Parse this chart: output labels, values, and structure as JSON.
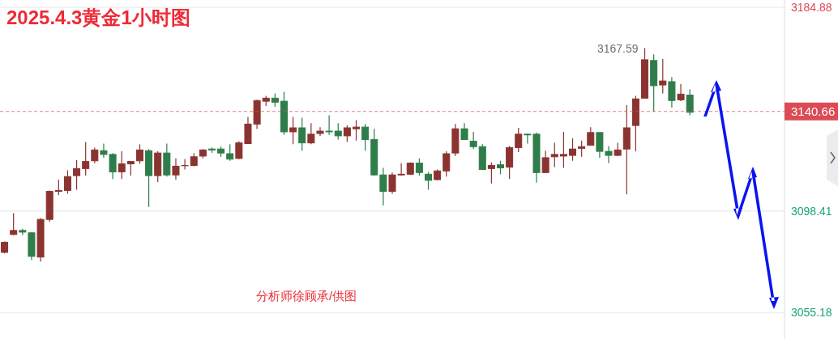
{
  "chart_data": {
    "type": "candlestick",
    "title": "2025.4.3黄金1小时图",
    "categories": [
      null,
      null,
      null,
      null,
      null,
      null,
      null,
      null,
      null,
      null,
      null,
      null,
      null,
      null,
      null,
      null,
      null,
      null,
      null,
      null,
      null,
      null,
      null,
      null,
      null,
      null,
      null,
      null,
      null,
      null,
      null,
      null,
      null,
      null,
      null,
      null,
      null,
      null,
      null,
      null,
      null,
      null,
      null,
      null,
      null,
      null,
      null,
      null,
      null,
      null,
      null,
      null,
      null,
      null,
      null,
      null,
      null,
      null,
      null,
      null,
      null,
      null,
      null,
      null,
      null,
      null,
      null,
      null,
      null,
      null,
      null,
      null,
      null,
      null,
      null,
      null,
      null,
      null,
      null,
      null,
      null,
      null,
      null,
      null,
      null,
      null,
      null
    ],
    "ohlc": [
      [
        3080.8,
        3085.4,
        3080.4,
        3085.1
      ],
      [
        3088.4,
        3097.4,
        3088.1,
        3090.1
      ],
      [
        3090.1,
        3090.8,
        3088.1,
        3089.4
      ],
      [
        3089.1,
        3089.4,
        3077.5,
        3079.1
      ],
      [
        3078.8,
        3095.4,
        3076.8,
        3094.8
      ],
      [
        3094.8,
        3107.1,
        3093.8,
        3106.7
      ],
      [
        3106.7,
        3111.7,
        3105.1,
        3107.1
      ],
      [
        3107.1,
        3115.7,
        3105.7,
        3113.0
      ],
      [
        3113.4,
        3120.0,
        3107.4,
        3116.4
      ],
      [
        3116.4,
        3127.7,
        3113.4,
        3119.4
      ],
      [
        3119.7,
        3125.3,
        3118.7,
        3124.3
      ],
      [
        3124.0,
        3127.0,
        3121.0,
        3122.4
      ],
      [
        3122.4,
        3123.0,
        3112.0,
        3115.0
      ],
      [
        3115.0,
        3123.7,
        3112.0,
        3118.4
      ],
      [
        3118.4,
        3119.4,
        3113.4,
        3119.4
      ],
      [
        3119.7,
        3126.7,
        3118.4,
        3124.3
      ],
      [
        3124.0,
        3124.7,
        3100.1,
        3113.4
      ],
      [
        3113.4,
        3123.7,
        3110.7,
        3123.0
      ],
      [
        3123.0,
        3127.0,
        3113.0,
        3113.7
      ],
      [
        3113.7,
        3120.7,
        3111.7,
        3117.4
      ],
      [
        3117.6,
        3120.4,
        3116.0,
        3117.7
      ],
      [
        3117.7,
        3123.0,
        3117.4,
        3121.4
      ],
      [
        3121.7,
        3124.7,
        3120.7,
        3124.3
      ],
      [
        3124.7,
        3125.3,
        3123.0,
        3124.3
      ],
      [
        3124.7,
        3125.7,
        3121.4,
        3123.0
      ],
      [
        3122.7,
        3126.7,
        3119.7,
        3120.4
      ],
      [
        3120.7,
        3128.0,
        3120.4,
        3127.3
      ],
      [
        3127.0,
        3138.3,
        3126.7,
        3135.3
      ],
      [
        3135.3,
        3145.6,
        3133.3,
        3145.3
      ],
      [
        3145.0,
        3147.3,
        3143.0,
        3146.3
      ],
      [
        3146.3,
        3148.3,
        3142.6,
        3144.6
      ],
      [
        3145.0,
        3149.0,
        3130.7,
        3132.0
      ],
      [
        3132.0,
        3138.3,
        3126.7,
        3133.7
      ],
      [
        3133.7,
        3138.0,
        3124.0,
        3127.3
      ],
      [
        3127.3,
        3135.7,
        3126.7,
        3131.0
      ],
      [
        3131.3,
        3134.0,
        3130.3,
        3132.3
      ],
      [
        3132.3,
        3139.0,
        3130.7,
        3132.0
      ],
      [
        3132.3,
        3135.7,
        3128.7,
        3130.3
      ],
      [
        3130.3,
        3134.7,
        3127.7,
        3133.7
      ],
      [
        3133.3,
        3137.0,
        3128.3,
        3134.0
      ],
      [
        3134.0,
        3135.3,
        3124.0,
        3128.7
      ],
      [
        3128.7,
        3133.3,
        3113.4,
        3113.7
      ],
      [
        3113.7,
        3116.7,
        3100.7,
        3106.7
      ],
      [
        3106.7,
        3114.7,
        3105.7,
        3113.7
      ],
      [
        3113.7,
        3118.7,
        3113.4,
        3114.0
      ],
      [
        3114.0,
        3119.0,
        3113.7,
        3118.7
      ],
      [
        3118.7,
        3120.7,
        3113.4,
        3114.7
      ],
      [
        3114.0,
        3115.0,
        3107.4,
        3111.4
      ],
      [
        3111.7,
        3116.0,
        3111.4,
        3115.4
      ],
      [
        3115.4,
        3123.7,
        3113.0,
        3122.7
      ],
      [
        3123.0,
        3135.3,
        3121.7,
        3133.3
      ],
      [
        3133.3,
        3135.7,
        3128.7,
        3128.7
      ],
      [
        3128.0,
        3132.0,
        3124.7,
        3125.7
      ],
      [
        3125.7,
        3126.7,
        3116.0,
        3116.0
      ],
      [
        3116.4,
        3119.0,
        3110.1,
        3117.7
      ],
      [
        3118.0,
        3119.7,
        3114.0,
        3116.7
      ],
      [
        3117.0,
        3126.0,
        3112.0,
        3125.3
      ],
      [
        3125.3,
        3133.7,
        3123.4,
        3131.0
      ],
      [
        3131.0,
        3131.3,
        3127.0,
        3130.7
      ],
      [
        3131.0,
        3131.7,
        3110.4,
        3114.7
      ],
      [
        3114.7,
        3124.0,
        3114.7,
        3121.0
      ],
      [
        3121.4,
        3127.3,
        3117.0,
        3122.4
      ],
      [
        3121.7,
        3132.0,
        3116.7,
        3122.4
      ],
      [
        3122.0,
        3129.3,
        3119.7,
        3124.7
      ],
      [
        3125.0,
        3128.3,
        3121.4,
        3125.7
      ],
      [
        3126.3,
        3134.0,
        3126.3,
        3131.7
      ],
      [
        3131.7,
        3131.7,
        3121.0,
        3123.7
      ],
      [
        3123.7,
        3126.0,
        3118.7,
        3122.0
      ],
      [
        3122.0,
        3127.3,
        3121.7,
        3124.3
      ],
      [
        3124.7,
        3143.3,
        3105.4,
        3133.7
      ],
      [
        3134.7,
        3147.3,
        3123.7,
        3146.0
      ],
      [
        3146.3,
        3167.59,
        3146.3,
        3162.6
      ],
      [
        3162.3,
        3164.9,
        3140.6,
        3151.6
      ],
      [
        3151.9,
        3162.9,
        3148.3,
        3153.6
      ],
      [
        3153.3,
        3155.3,
        3142.3,
        3145.3
      ],
      [
        3145.6,
        3152.3,
        3145.0,
        3148.0
      ],
      [
        3147.6,
        3150.0,
        3139.0,
        3140.3
      ],
      null,
      null,
      null,
      null,
      null,
      null,
      null,
      null,
      null,
      null
    ],
    "colors": [
      "#8b3330",
      "#8b3330",
      "#2e7d4a",
      "#2e7d4a",
      "#8b3330",
      "#8b3330",
      "#8b3330",
      "#8b3330",
      "#8b3330",
      "#8b3330",
      "#8b3330",
      "#2e7d4a",
      "#2e7d4a",
      "#8b3330",
      "#8b3330",
      "#8b3330",
      "#2e7d4a",
      "#8b3330",
      "#2e7d4a",
      "#8b3330",
      "#8b3330",
      "#8b3330",
      "#8b3330",
      "#2e7d4a",
      "#2e7d4a",
      "#2e7d4a",
      "#8b3330",
      "#8b3330",
      "#8b3330",
      "#8b3330",
      "#2e7d4a",
      "#2e7d4a",
      "#8b3330",
      "#2e7d4a",
      "#8b3330",
      "#8b3330",
      "#2e7d4a",
      "#2e7d4a",
      "#8b3330",
      "#8b3330",
      "#2e7d4a",
      "#2e7d4a",
      "#2e7d4a",
      "#8b3330",
      "#8b3330",
      "#8b3330",
      "#2e7d4a",
      "#2e7d4a",
      "#8b3330",
      "#8b3330",
      "#8b3330",
      "#2e7d4a",
      "#2e7d4a",
      "#2e7d4a",
      "#8b3330",
      "#2e7d4a",
      "#8b3330",
      "#8b3330",
      "#2e7d4a",
      "#2e7d4a",
      "#8b3330",
      "#8b3330",
      "#8b3330",
      "#8b3330",
      "#8b3330",
      "#8b3330",
      "#2e7d4a",
      "#2e7d4a",
      "#8b3330",
      "#8b3330",
      "#8b3330",
      "#8b3330",
      "#2e7d4a",
      "#8b3330",
      "#2e7d4a",
      "#8b3330",
      "#2e7d4a",
      null,
      null,
      null,
      null,
      null,
      null,
      null,
      null,
      null,
      null
    ],
    "ylim": [
      3044,
      3188
    ],
    "yticks": [
      3184.88,
      3098.41,
      3055.18
    ],
    "grid": "y",
    "ref_lines": [
      {
        "axis": "y",
        "value": 3140.66,
        "label": "3140.66",
        "color": "#dc4b55",
        "line_style": "dashed"
      }
    ],
    "annotations": [
      "3167.59",
      "分析师徐顾承/供图"
    ]
  }
}
